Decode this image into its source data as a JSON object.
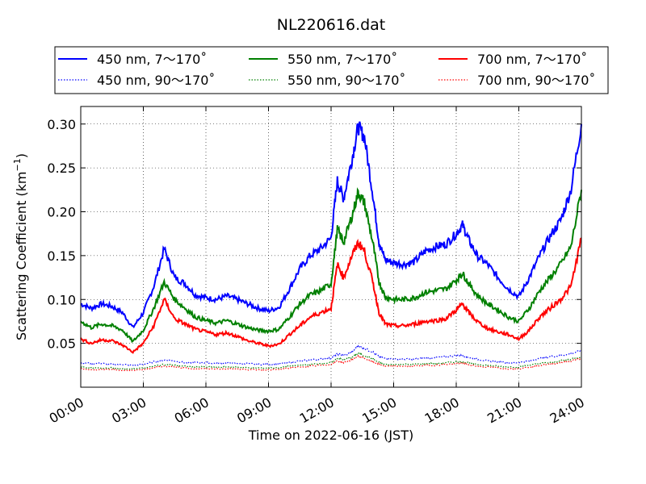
{
  "chart_data": {
    "type": "line",
    "title": "NL220616.dat",
    "xlabel": "Time on 2022-06-16 (JST)",
    "ylabel": "Scattering Coefficient (km",
    "ylabel_sup": "−1",
    "ylabel_close": ")",
    "xlim": [
      0,
      24
    ],
    "ylim": [
      0.0,
      0.32
    ],
    "grid": true,
    "legend_position": "top, above plot",
    "x_ticks": [
      {
        "value": 0,
        "label": "00:00"
      },
      {
        "value": 3,
        "label": "03:00"
      },
      {
        "value": 6,
        "label": "06:00"
      },
      {
        "value": 9,
        "label": "09:00"
      },
      {
        "value": 12,
        "label": "12:00"
      },
      {
        "value": 15,
        "label": "15:00"
      },
      {
        "value": 18,
        "label": "18:00"
      },
      {
        "value": 21,
        "label": "21:00"
      },
      {
        "value": 24,
        "label": "24:00"
      }
    ],
    "y_ticks": [
      {
        "value": 0.05,
        "label": "0.05"
      },
      {
        "value": 0.1,
        "label": "0.10"
      },
      {
        "value": 0.15,
        "label": "0.15"
      },
      {
        "value": 0.2,
        "label": "0.20"
      },
      {
        "value": 0.25,
        "label": "0.25"
      },
      {
        "value": 0.3,
        "label": "0.30"
      }
    ],
    "x": [
      0,
      0.5,
      1,
      1.5,
      2,
      2.5,
      3,
      3.5,
      4,
      4.5,
      5,
      5.5,
      6,
      6.5,
      7,
      7.5,
      8,
      8.5,
      9,
      9.5,
      10,
      10.5,
      11,
      11.5,
      12,
      12.3,
      12.6,
      13,
      13.3,
      13.6,
      14,
      14.3,
      14.6,
      15,
      15.5,
      16,
      16.5,
      17,
      17.5,
      18,
      18.3,
      18.6,
      19,
      19.5,
      20,
      20.5,
      21,
      21.5,
      22,
      22.5,
      23,
      23.5,
      24
    ],
    "series": [
      {
        "name": "450 nm, 7～170˚",
        "color": "#0000ff",
        "dash": "solid",
        "values": [
          0.095,
          0.09,
          0.095,
          0.092,
          0.085,
          0.068,
          0.085,
          0.115,
          0.158,
          0.125,
          0.118,
          0.105,
          0.102,
          0.1,
          0.104,
          0.1,
          0.095,
          0.09,
          0.087,
          0.091,
          0.112,
          0.135,
          0.15,
          0.158,
          0.17,
          0.235,
          0.215,
          0.26,
          0.297,
          0.285,
          0.22,
          0.165,
          0.145,
          0.142,
          0.14,
          0.143,
          0.155,
          0.16,
          0.163,
          0.175,
          0.185,
          0.168,
          0.15,
          0.14,
          0.125,
          0.112,
          0.103,
          0.125,
          0.15,
          0.172,
          0.19,
          0.225,
          0.3
        ]
      },
      {
        "name": "450 nm, 90～170˚",
        "color": "#0000ff",
        "dash": "dotted",
        "values": [
          0.028,
          0.027,
          0.027,
          0.026,
          0.026,
          0.025,
          0.026,
          0.029,
          0.031,
          0.03,
          0.028,
          0.028,
          0.028,
          0.027,
          0.028,
          0.027,
          0.027,
          0.026,
          0.026,
          0.027,
          0.028,
          0.03,
          0.031,
          0.032,
          0.033,
          0.038,
          0.036,
          0.04,
          0.047,
          0.044,
          0.04,
          0.035,
          0.033,
          0.032,
          0.032,
          0.032,
          0.033,
          0.034,
          0.035,
          0.036,
          0.036,
          0.034,
          0.032,
          0.03,
          0.029,
          0.028,
          0.028,
          0.03,
          0.033,
          0.035,
          0.036,
          0.038,
          0.042
        ]
      },
      {
        "name": "550 nm, 7～170˚",
        "color": "#008000",
        "dash": "solid",
        "values": [
          0.075,
          0.068,
          0.072,
          0.07,
          0.065,
          0.052,
          0.065,
          0.09,
          0.12,
          0.1,
          0.09,
          0.08,
          0.076,
          0.073,
          0.076,
          0.072,
          0.068,
          0.065,
          0.064,
          0.066,
          0.08,
          0.095,
          0.105,
          0.11,
          0.118,
          0.18,
          0.165,
          0.195,
          0.222,
          0.21,
          0.165,
          0.12,
          0.103,
          0.1,
          0.1,
          0.102,
          0.108,
          0.11,
          0.112,
          0.122,
          0.13,
          0.118,
          0.105,
          0.095,
          0.088,
          0.08,
          0.075,
          0.09,
          0.11,
          0.125,
          0.14,
          0.16,
          0.225
        ]
      },
      {
        "name": "550 nm, 90～170˚",
        "color": "#008000",
        "dash": "dotted",
        "values": [
          0.023,
          0.022,
          0.022,
          0.022,
          0.021,
          0.021,
          0.022,
          0.024,
          0.026,
          0.025,
          0.024,
          0.023,
          0.023,
          0.023,
          0.023,
          0.023,
          0.022,
          0.022,
          0.022,
          0.022,
          0.024,
          0.025,
          0.026,
          0.027,
          0.028,
          0.033,
          0.031,
          0.034,
          0.038,
          0.036,
          0.032,
          0.028,
          0.026,
          0.026,
          0.026,
          0.026,
          0.027,
          0.027,
          0.028,
          0.029,
          0.029,
          0.028,
          0.026,
          0.025,
          0.024,
          0.023,
          0.023,
          0.025,
          0.027,
          0.028,
          0.03,
          0.032,
          0.035
        ]
      },
      {
        "name": "700 nm, 7～170˚",
        "color": "#ff0000",
        "dash": "solid",
        "values": [
          0.055,
          0.05,
          0.054,
          0.053,
          0.048,
          0.04,
          0.05,
          0.07,
          0.1,
          0.078,
          0.072,
          0.066,
          0.063,
          0.06,
          0.062,
          0.058,
          0.053,
          0.05,
          0.047,
          0.049,
          0.06,
          0.07,
          0.08,
          0.085,
          0.09,
          0.14,
          0.125,
          0.15,
          0.165,
          0.155,
          0.12,
          0.085,
          0.072,
          0.07,
          0.07,
          0.072,
          0.075,
          0.076,
          0.078,
          0.088,
          0.095,
          0.085,
          0.075,
          0.067,
          0.063,
          0.06,
          0.055,
          0.065,
          0.08,
          0.09,
          0.1,
          0.115,
          0.17
        ]
      },
      {
        "name": "700 nm, 90～170˚",
        "color": "#ff0000",
        "dash": "dotted",
        "values": [
          0.021,
          0.02,
          0.02,
          0.02,
          0.019,
          0.019,
          0.02,
          0.022,
          0.024,
          0.023,
          0.022,
          0.021,
          0.021,
          0.021,
          0.021,
          0.021,
          0.02,
          0.02,
          0.02,
          0.02,
          0.022,
          0.023,
          0.024,
          0.025,
          0.026,
          0.03,
          0.028,
          0.031,
          0.035,
          0.033,
          0.029,
          0.026,
          0.024,
          0.024,
          0.024,
          0.024,
          0.025,
          0.025,
          0.026,
          0.027,
          0.027,
          0.026,
          0.024,
          0.023,
          0.022,
          0.021,
          0.021,
          0.023,
          0.025,
          0.026,
          0.028,
          0.03,
          0.033
        ]
      }
    ]
  }
}
